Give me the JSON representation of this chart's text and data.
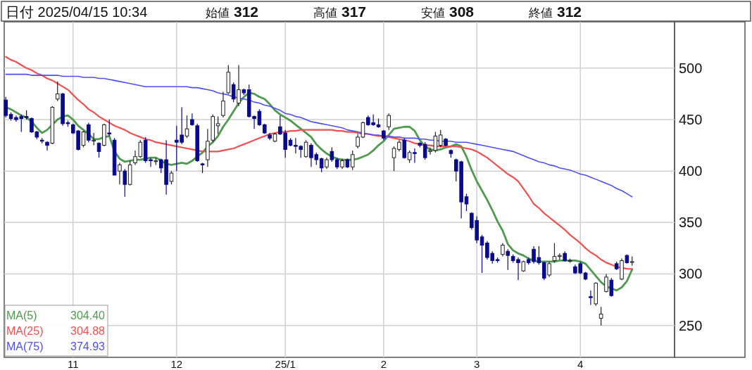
{
  "chart_data": {
    "type": "candlestick",
    "title": "日付 2025/04/15 10:34",
    "annotations": [
      "始値 312",
      "高値 317",
      "安値 308",
      "終値 312",
      "304.40",
      "304.88",
      "374.93"
    ],
    "categories": [
      null,
      null,
      null,
      null,
      null,
      null,
      null,
      null,
      null,
      null,
      null,
      null,
      null,
      "11",
      null,
      null,
      null,
      null,
      null,
      null,
      null,
      null,
      null,
      null,
      null,
      null,
      null,
      null,
      null,
      null,
      null,
      null,
      null,
      "12",
      null,
      null,
      null,
      null,
      null,
      null,
      null,
      null,
      null,
      null,
      null,
      null,
      null,
      null,
      null,
      null,
      null,
      null,
      null,
      null,
      "25/1",
      null,
      null,
      null,
      null,
      null,
      null,
      null,
      null,
      null,
      null,
      null,
      null,
      null,
      null,
      null,
      null,
      null,
      null,
      "2",
      null,
      null,
      null,
      null,
      null,
      null,
      null,
      null,
      null,
      null,
      null,
      null,
      null,
      null,
      null,
      null,
      null,
      "3",
      null,
      null,
      null,
      null,
      null,
      null,
      null,
      null,
      null,
      null,
      null,
      null,
      null,
      null,
      null,
      null,
      null,
      null,
      null,
      "4",
      null,
      null,
      null,
      null,
      null,
      null,
      null,
      null,
      null,
      null
    ],
    "ohlc": [
      [
        469,
        472,
        452,
        454
      ],
      [
        455,
        457,
        449,
        451
      ],
      [
        452,
        454,
        448,
        450
      ],
      [
        453,
        455,
        438,
        451
      ],
      [
        453,
        459,
        450,
        452
      ],
      [
        451,
        452,
        437,
        438
      ],
      [
        438,
        439,
        431,
        433
      ],
      [
        430,
        432,
        427,
        429
      ],
      [
        428,
        429,
        420,
        425
      ],
      [
        427,
        463,
        426,
        462
      ],
      [
        470,
        487,
        468,
        475
      ],
      [
        475,
        476,
        444,
        446
      ],
      [
        447,
        449,
        443,
        446
      ],
      [
        445,
        446,
        436,
        437
      ],
      [
        439,
        440,
        420,
        421
      ],
      [
        425,
        439,
        423,
        438
      ],
      [
        445,
        447,
        428,
        430
      ],
      [
        430,
        437,
        425,
        430
      ],
      [
        427,
        428,
        413,
        419
      ],
      [
        425,
        446,
        424,
        445
      ],
      [
        437,
        450,
        434,
        436
      ],
      [
        430,
        432,
        396,
        396
      ],
      [
        400,
        408,
        387,
        406
      ],
      [
        400,
        402,
        375,
        387
      ],
      [
        387,
        410,
        386,
        406
      ],
      [
        408,
        420,
        406,
        414
      ],
      [
        414,
        430,
        413,
        428
      ],
      [
        430,
        433,
        408,
        410
      ],
      [
        411,
        413,
        404,
        410
      ],
      [
        410,
        413,
        406,
        410
      ],
      [
        411,
        412,
        398,
        403
      ],
      [
        411,
        430,
        377,
        387
      ],
      [
        390,
        400,
        387,
        398
      ],
      [
        430,
        444,
        400,
        428
      ],
      [
        435,
        462,
        426,
        428
      ],
      [
        434,
        454,
        432,
        441
      ],
      [
        450,
        456,
        444,
        445
      ],
      [
        444,
        446,
        409,
        410
      ],
      [
        407,
        408,
        398,
        406
      ],
      [
        411,
        441,
        404,
        429
      ],
      [
        430,
        455,
        428,
        453
      ],
      [
        444,
        453,
        436,
        446
      ],
      [
        454,
        477,
        452,
        468
      ],
      [
        476,
        503,
        475,
        496
      ],
      [
        484,
        486,
        467,
        470
      ],
      [
        466,
        503,
        463,
        479
      ],
      [
        479,
        480,
        474,
        476
      ],
      [
        479,
        484,
        452,
        453
      ],
      [
        453,
        454,
        441,
        451
      ],
      [
        458,
        460,
        444,
        445
      ],
      [
        445,
        446,
        436,
        437
      ],
      [
        435,
        437,
        430,
        432
      ],
      [
        429,
        437,
        428,
        436
      ],
      [
        443,
        454,
        435,
        436
      ],
      [
        437,
        440,
        413,
        421
      ],
      [
        430,
        432,
        424,
        425
      ],
      [
        425,
        432,
        417,
        424
      ],
      [
        424,
        425,
        413,
        421
      ],
      [
        414,
        430,
        413,
        428
      ],
      [
        425,
        427,
        404,
        413
      ],
      [
        416,
        418,
        406,
        411
      ],
      [
        412,
        413,
        399,
        403
      ],
      [
        404,
        413,
        402,
        411
      ],
      [
        419,
        423,
        409,
        411
      ],
      [
        411,
        413,
        402,
        404
      ],
      [
        404,
        412,
        402,
        410
      ],
      [
        411,
        412,
        403,
        404
      ],
      [
        404,
        420,
        401,
        416
      ],
      [
        424,
        436,
        422,
        433
      ],
      [
        433,
        448,
        432,
        447
      ],
      [
        452,
        454,
        444,
        445
      ],
      [
        447,
        455,
        444,
        445
      ],
      [
        445,
        451,
        442,
        443
      ],
      [
        439,
        440,
        430,
        432
      ],
      [
        443,
        456,
        440,
        454
      ],
      [
        413,
        424,
        400,
        422
      ],
      [
        421,
        430,
        419,
        428
      ],
      [
        430,
        432,
        412,
        413
      ],
      [
        411,
        420,
        408,
        418
      ],
      [
        418,
        422,
        408,
        417
      ],
      [
        427,
        428,
        423,
        425
      ],
      [
        426,
        428,
        411,
        413
      ],
      [
        419,
        423,
        416,
        420
      ],
      [
        420,
        438,
        418,
        434
      ],
      [
        425,
        440,
        423,
        435
      ],
      [
        431,
        432,
        424,
        425
      ],
      [
        420,
        421,
        413,
        417
      ],
      [
        411,
        412,
        390,
        400
      ],
      [
        409,
        410,
        354,
        370
      ],
      [
        375,
        378,
        361,
        368
      ],
      [
        359,
        360,
        343,
        345
      ],
      [
        352,
        356,
        330,
        333
      ],
      [
        336,
        338,
        301,
        328
      ],
      [
        330,
        332,
        314,
        316
      ],
      [
        320,
        322,
        310,
        313
      ],
      [
        314,
        316,
        311,
        313
      ],
      [
        319,
        330,
        317,
        328
      ],
      [
        322,
        324,
        304,
        318
      ],
      [
        317,
        319,
        311,
        313
      ],
      [
        314,
        316,
        294,
        311
      ],
      [
        303,
        313,
        302,
        312
      ],
      [
        314,
        316,
        309,
        311
      ],
      [
        324,
        327,
        310,
        312
      ],
      [
        316,
        327,
        309,
        311
      ],
      [
        311,
        312,
        294,
        296
      ],
      [
        299,
        312,
        297,
        310
      ],
      [
        313,
        330,
        311,
        317
      ],
      [
        317,
        320,
        314,
        318
      ],
      [
        320,
        322,
        312,
        313
      ],
      [
        313,
        315,
        311,
        313
      ],
      [
        307,
        309,
        300,
        301
      ],
      [
        310,
        312,
        300,
        301
      ],
      [
        301,
        302,
        294,
        295
      ],
      [
        278,
        284,
        270,
        277
      ],
      [
        271,
        292,
        269,
        291
      ],
      [
        257,
        268,
        250,
        261
      ],
      [
        283,
        300,
        282,
        297
      ],
      [
        294,
        296,
        278,
        279
      ],
      [
        310,
        312,
        304,
        305
      ],
      [
        295,
        315,
        294,
        313
      ],
      [
        318,
        319,
        310,
        311
      ],
      [
        312,
        317,
        308,
        312
      ]
    ],
    "series": [
      {
        "name": "MA(5)",
        "type": "line",
        "color": "#4e9a4e",
        "values": [
          462,
          460,
          457,
          454,
          452,
          448,
          442,
          437,
          440,
          445,
          450,
          453,
          454,
          450,
          444,
          440,
          436,
          431,
          431,
          433,
          434,
          419,
          412,
          409,
          410,
          411,
          411,
          412,
          413,
          413,
          410,
          407,
          406,
          407,
          408,
          407,
          410,
          414,
          418,
          424,
          428,
          434,
          443,
          450,
          458,
          466,
          472,
          476,
          475,
          472,
          470,
          465,
          459,
          455,
          452,
          449,
          445,
          441,
          437,
          433,
          426,
          421,
          417,
          414,
          412,
          411,
          411,
          411,
          412,
          414,
          416,
          420,
          425,
          429,
          435,
          441,
          442,
          443,
          443,
          439,
          430,
          424,
          421,
          420,
          421,
          423,
          424,
          426,
          424,
          414,
          401,
          390,
          381,
          372,
          362,
          351,
          342,
          329,
          323,
          320,
          318,
          315,
          313,
          312,
          312,
          312,
          312,
          313,
          313,
          313,
          313,
          312,
          310,
          304,
          298,
          292,
          288,
          286,
          284,
          287,
          293,
          304.4
        ]
      },
      {
        "name": "MA(25)",
        "type": "line",
        "color": "#f25050",
        "values": [
          511,
          508,
          506,
          503,
          500,
          498,
          495,
          493,
          490,
          488,
          485,
          482,
          479,
          474,
          469,
          465,
          460,
          457,
          453,
          450,
          447,
          444,
          442,
          440,
          437,
          435,
          433,
          431,
          430,
          428,
          427,
          426,
          425,
          424,
          423,
          422,
          421,
          420,
          419,
          419,
          419,
          419,
          420,
          421,
          422,
          424,
          426,
          428,
          430,
          432,
          434,
          436,
          437,
          438,
          438,
          439,
          439,
          440,
          440,
          440,
          440,
          440,
          440,
          440,
          439,
          439,
          438,
          438,
          437,
          436,
          436,
          435,
          434,
          434,
          433,
          432,
          431,
          430,
          429,
          427,
          426,
          425,
          425,
          424,
          424,
          424,
          424,
          424,
          423,
          422,
          421,
          419,
          416,
          413,
          409,
          405,
          401,
          397,
          394,
          390,
          383,
          376,
          368,
          364,
          359,
          355,
          351,
          347,
          343,
          338,
          334,
          330,
          325,
          321,
          318,
          314,
          311,
          309,
          307,
          306,
          305,
          304.88
        ]
      },
      {
        "name": "MA(75)",
        "type": "line",
        "color": "#4d4dfa",
        "values": [
          494,
          494,
          494,
          494,
          494,
          493,
          493,
          493,
          493,
          493,
          493,
          492,
          492,
          492,
          492,
          491,
          491,
          491,
          490,
          490,
          489,
          488,
          487,
          486,
          485,
          484,
          483,
          482,
          482,
          482,
          482,
          482,
          482,
          482,
          482,
          482,
          481,
          481,
          480,
          479,
          478,
          476,
          475,
          474,
          472,
          471,
          470,
          469,
          467,
          466,
          464,
          463,
          461,
          459,
          456,
          455,
          453,
          452,
          450,
          448,
          447,
          446,
          445,
          444,
          443,
          442,
          440,
          439,
          438,
          437,
          436,
          435,
          435,
          434,
          434,
          433,
          433,
          432,
          432,
          432,
          431,
          431,
          430,
          430,
          429,
          429,
          429,
          428,
          428,
          428,
          427,
          426,
          425,
          424,
          423,
          422,
          421,
          420,
          419,
          417,
          415,
          413,
          411,
          409,
          408,
          406,
          405,
          403,
          402,
          401,
          399,
          397,
          396,
          394,
          392,
          390,
          388,
          386,
          383,
          381,
          378,
          374.93
        ]
      }
    ],
    "ylim": [
      219,
      545
    ],
    "yticks": [
      250,
      300,
      350,
      400,
      450,
      500
    ],
    "grid": true,
    "legend": "bottom left"
  }
}
